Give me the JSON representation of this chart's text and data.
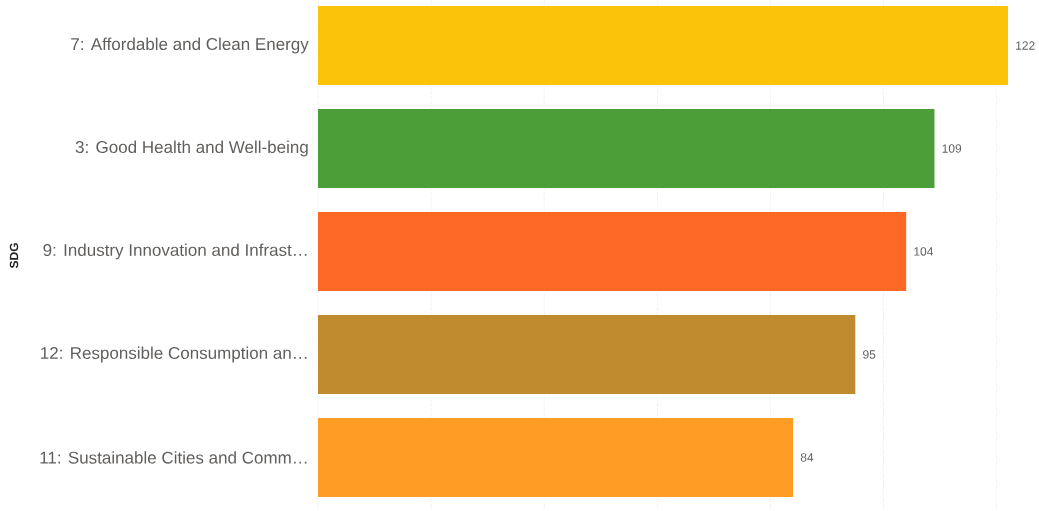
{
  "chart_data": {
    "type": "bar",
    "orientation": "horizontal",
    "ylabel": "SDG",
    "categories": [
      "7: Affordable and Clean Energy",
      "3: Good Health and Well-being",
      "9: Industry Innovation and Infrast…",
      "12: Responsible Consumption an…",
      "11: Sustainable Cities and Comm…"
    ],
    "values": [
      122,
      109,
      104,
      95,
      84
    ],
    "colors": [
      "#fcc30b",
      "#4c9f38",
      "#fd6925",
      "#bf8b2e",
      "#fd9d24"
    ],
    "xlim": [
      0,
      122
    ],
    "xticks": [
      {
        "value": 0,
        "label": null
      },
      {
        "value": 20,
        "label": null
      },
      {
        "value": 40,
        "label": null
      },
      {
        "value": 60,
        "label": null
      },
      {
        "value": 80,
        "label": null
      },
      {
        "value": 100,
        "label": null
      },
      {
        "value": 120,
        "label": null
      }
    ],
    "grid": "x",
    "tick_labels": "y",
    "data_labels": true
  }
}
